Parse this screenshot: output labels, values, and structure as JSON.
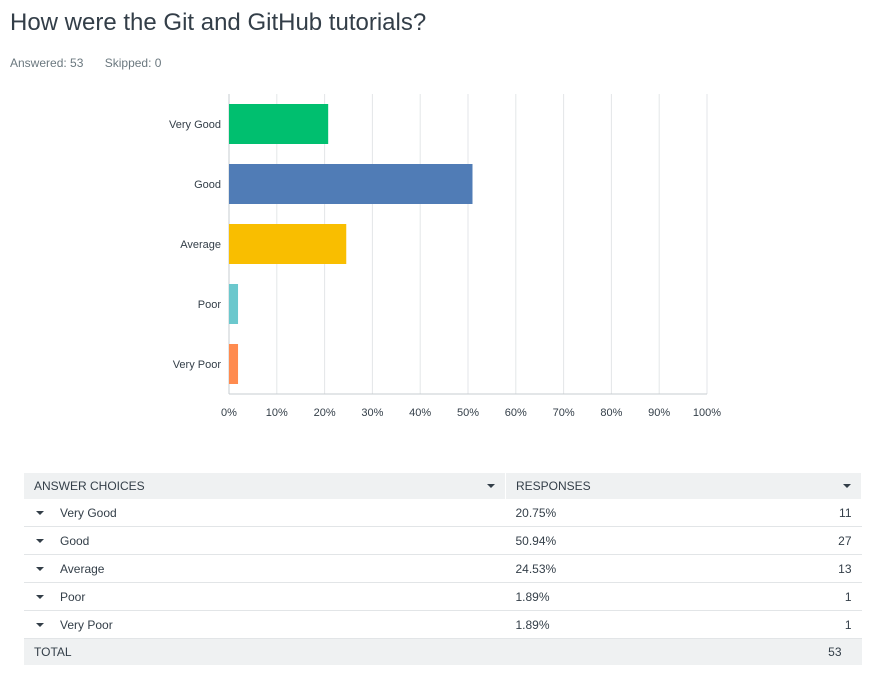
{
  "question": {
    "title": "How were the Git and GitHub tutorials?",
    "answered": "Answered: 53",
    "skipped": "Skipped: 0"
  },
  "chart_data": {
    "type": "bar",
    "orientation": "horizontal",
    "categories": [
      "Very Good",
      "Good",
      "Average",
      "Poor",
      "Very Poor"
    ],
    "values": [
      20.75,
      50.94,
      24.53,
      1.89,
      1.89
    ],
    "colors": [
      "#00bf6f",
      "#507cb6",
      "#f9be00",
      "#6bc8cd",
      "#ff8b4f"
    ],
    "xlim": [
      0,
      100
    ],
    "x_ticks": [
      "0%",
      "10%",
      "20%",
      "30%",
      "40%",
      "50%",
      "60%",
      "70%",
      "80%",
      "90%",
      "100%"
    ],
    "grid": true,
    "title": "",
    "xlabel": "",
    "ylabel": ""
  },
  "table": {
    "header_choices": "ANSWER CHOICES",
    "header_responses": "RESPONSES",
    "rows": [
      {
        "label": "Very Good",
        "percent": "20.75%",
        "count": "11"
      },
      {
        "label": "Good",
        "percent": "50.94%",
        "count": "27"
      },
      {
        "label": "Average",
        "percent": "24.53%",
        "count": "13"
      },
      {
        "label": "Poor",
        "percent": "1.89%",
        "count": "1"
      },
      {
        "label": "Very Poor",
        "percent": "1.89%",
        "count": "1"
      }
    ],
    "total_label": "TOTAL",
    "total_count": "53"
  }
}
